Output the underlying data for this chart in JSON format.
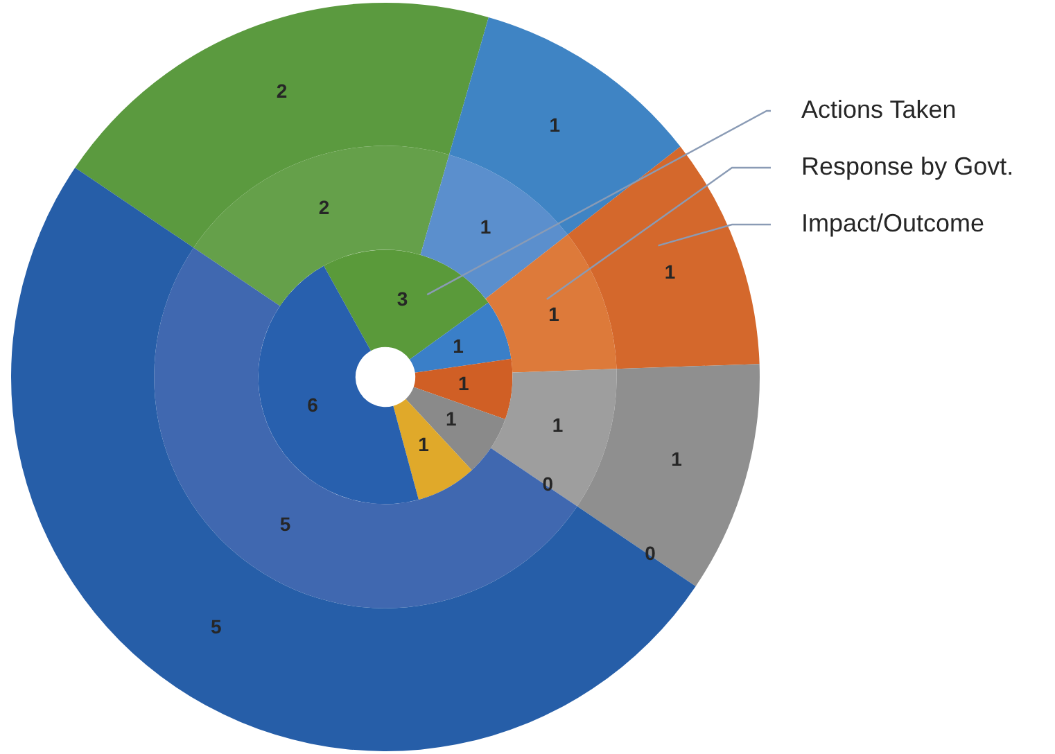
{
  "chart_data": {
    "type": "donut",
    "categories": [
      null,
      null,
      null,
      null,
      null,
      null
    ],
    "legend": "right",
    "series": [
      {
        "name": "Actions Taken",
        "values": [
          3,
          1,
          1,
          1,
          1,
          6
        ],
        "value_labels": [
          "3",
          "1",
          "1",
          "1",
          "1",
          "6"
        ],
        "colors": [
          "#5a9a3a",
          "#3a7fc8",
          "#d05f25",
          "#8a8a8a",
          "#e0a92a",
          "#2860ae"
        ]
      },
      {
        "name": "Response by Govt.",
        "values": [
          2,
          1,
          1,
          1,
          0,
          5
        ],
        "value_labels": [
          "2",
          "1",
          "1",
          "1",
          "0",
          "5"
        ],
        "colors": [
          "#65a04a",
          "#5b8fcd",
          "#dd7a3a",
          "#9e9e9e",
          "#e0a92a",
          "#4068b0"
        ]
      },
      {
        "name": "Impact/Outcome",
        "values": [
          2,
          1,
          1,
          1,
          0,
          5
        ],
        "value_labels": [
          "2",
          "1",
          "1",
          "1",
          "0",
          "5"
        ],
        "colors": [
          "#5b9a3f",
          "#3f84c4",
          "#d4682c",
          "#8f8f8f",
          "#e0a92a",
          "#265ea8"
        ]
      }
    ]
  }
}
